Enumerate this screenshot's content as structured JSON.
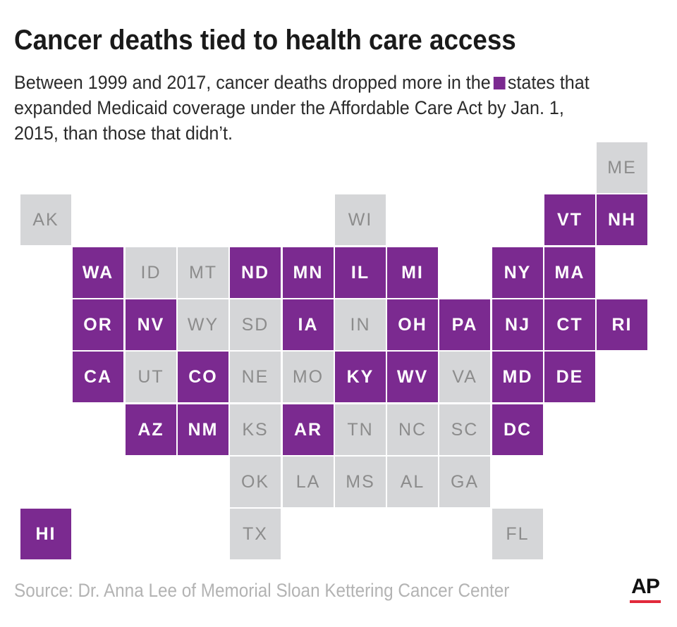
{
  "title": "Cancer deaths tied to health care access",
  "subtitle": {
    "before": "Between 1999 and 2017, cancer deaths dropped more in the",
    "after": "states that expanded Medicaid coverage under the Affordable Care Act by Jan. 1, 2015, than those that didn’t."
  },
  "colors": {
    "expanded": "#7b2a90",
    "not_expanded": "#d5d6d8",
    "ap_red": "#e2293b"
  },
  "map": {
    "type": "tile-grid",
    "states": [
      {
        "abbr": "ME",
        "expanded": false,
        "col": 11,
        "row": 0
      },
      {
        "abbr": "AK",
        "expanded": false,
        "col": 0,
        "row": 1
      },
      {
        "abbr": "WI",
        "expanded": false,
        "col": 6,
        "row": 1
      },
      {
        "abbr": "VT",
        "expanded": true,
        "col": 10,
        "row": 1
      },
      {
        "abbr": "NH",
        "expanded": true,
        "col": 11,
        "row": 1
      },
      {
        "abbr": "WA",
        "expanded": true,
        "col": 1,
        "row": 2
      },
      {
        "abbr": "ID",
        "expanded": false,
        "col": 2,
        "row": 2
      },
      {
        "abbr": "MT",
        "expanded": false,
        "col": 3,
        "row": 2
      },
      {
        "abbr": "ND",
        "expanded": true,
        "col": 4,
        "row": 2
      },
      {
        "abbr": "MN",
        "expanded": true,
        "col": 5,
        "row": 2
      },
      {
        "abbr": "IL",
        "expanded": true,
        "col": 6,
        "row": 2
      },
      {
        "abbr": "MI",
        "expanded": true,
        "col": 7,
        "row": 2
      },
      {
        "abbr": "NY",
        "expanded": true,
        "col": 9,
        "row": 2
      },
      {
        "abbr": "MA",
        "expanded": true,
        "col": 10,
        "row": 2
      },
      {
        "abbr": "OR",
        "expanded": true,
        "col": 1,
        "row": 3
      },
      {
        "abbr": "NV",
        "expanded": true,
        "col": 2,
        "row": 3
      },
      {
        "abbr": "WY",
        "expanded": false,
        "col": 3,
        "row": 3
      },
      {
        "abbr": "SD",
        "expanded": false,
        "col": 4,
        "row": 3
      },
      {
        "abbr": "IA",
        "expanded": true,
        "col": 5,
        "row": 3
      },
      {
        "abbr": "IN",
        "expanded": false,
        "col": 6,
        "row": 3
      },
      {
        "abbr": "OH",
        "expanded": true,
        "col": 7,
        "row": 3
      },
      {
        "abbr": "PA",
        "expanded": true,
        "col": 8,
        "row": 3
      },
      {
        "abbr": "NJ",
        "expanded": true,
        "col": 9,
        "row": 3
      },
      {
        "abbr": "CT",
        "expanded": true,
        "col": 10,
        "row": 3
      },
      {
        "abbr": "RI",
        "expanded": true,
        "col": 11,
        "row": 3
      },
      {
        "abbr": "CA",
        "expanded": true,
        "col": 1,
        "row": 4
      },
      {
        "abbr": "UT",
        "expanded": false,
        "col": 2,
        "row": 4
      },
      {
        "abbr": "CO",
        "expanded": true,
        "col": 3,
        "row": 4
      },
      {
        "abbr": "NE",
        "expanded": false,
        "col": 4,
        "row": 4
      },
      {
        "abbr": "MO",
        "expanded": false,
        "col": 5,
        "row": 4
      },
      {
        "abbr": "KY",
        "expanded": true,
        "col": 6,
        "row": 4
      },
      {
        "abbr": "WV",
        "expanded": true,
        "col": 7,
        "row": 4
      },
      {
        "abbr": "VA",
        "expanded": false,
        "col": 8,
        "row": 4
      },
      {
        "abbr": "MD",
        "expanded": true,
        "col": 9,
        "row": 4
      },
      {
        "abbr": "DE",
        "expanded": true,
        "col": 10,
        "row": 4
      },
      {
        "abbr": "AZ",
        "expanded": true,
        "col": 2,
        "row": 5
      },
      {
        "abbr": "NM",
        "expanded": true,
        "col": 3,
        "row": 5
      },
      {
        "abbr": "KS",
        "expanded": false,
        "col": 4,
        "row": 5
      },
      {
        "abbr": "AR",
        "expanded": true,
        "col": 5,
        "row": 5
      },
      {
        "abbr": "TN",
        "expanded": false,
        "col": 6,
        "row": 5
      },
      {
        "abbr": "NC",
        "expanded": false,
        "col": 7,
        "row": 5
      },
      {
        "abbr": "SC",
        "expanded": false,
        "col": 8,
        "row": 5
      },
      {
        "abbr": "DC",
        "expanded": true,
        "col": 9,
        "row": 5
      },
      {
        "abbr": "OK",
        "expanded": false,
        "col": 4,
        "row": 6
      },
      {
        "abbr": "LA",
        "expanded": false,
        "col": 5,
        "row": 6
      },
      {
        "abbr": "MS",
        "expanded": false,
        "col": 6,
        "row": 6
      },
      {
        "abbr": "AL",
        "expanded": false,
        "col": 7,
        "row": 6
      },
      {
        "abbr": "GA",
        "expanded": false,
        "col": 8,
        "row": 6
      },
      {
        "abbr": "HI",
        "expanded": true,
        "col": 0,
        "row": 7
      },
      {
        "abbr": "TX",
        "expanded": false,
        "col": 4,
        "row": 7
      },
      {
        "abbr": "FL",
        "expanded": false,
        "col": 9,
        "row": 7
      }
    ]
  },
  "source": "Source: Dr. Anna Lee of Memorial Sloan Kettering Cancer Center",
  "logo": {
    "text": "AP"
  }
}
